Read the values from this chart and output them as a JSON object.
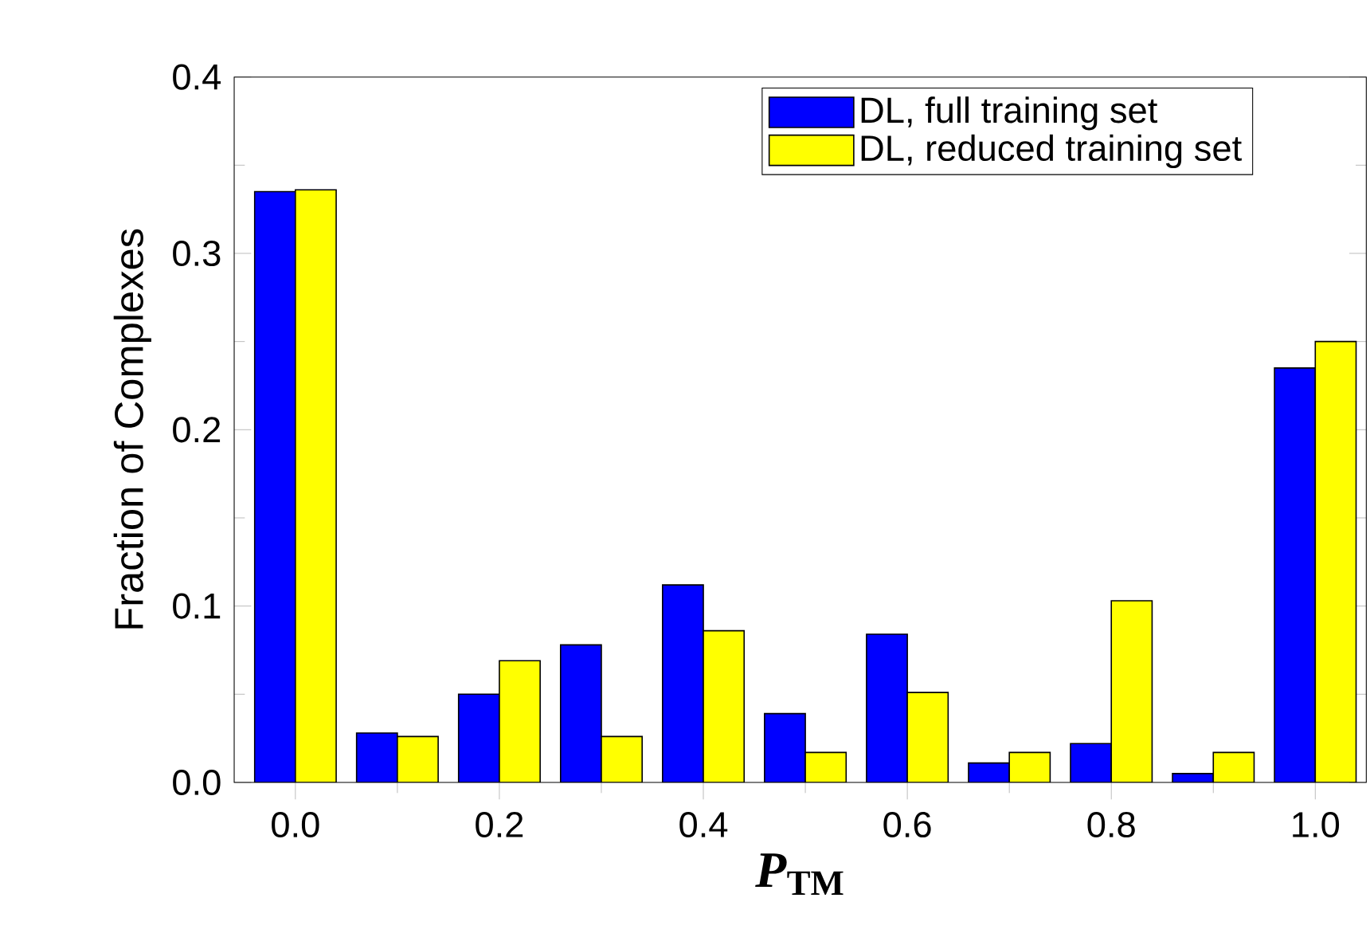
{
  "chart_data": {
    "type": "bar",
    "xlabel": "*P*$_{TM}$",
    "ylabel": "Fraction of Complexes",
    "x": [
      0.0,
      0.1,
      0.2,
      0.3,
      0.4,
      0.5,
      0.6,
      0.7,
      0.8,
      0.9,
      1.0
    ],
    "series": [
      {
        "name": "DL, full training set",
        "color": "#0000ff",
        "values": [
          0.335,
          0.028,
          0.05,
          0.078,
          0.112,
          0.039,
          0.084,
          0.011,
          0.022,
          0.005,
          0.235
        ]
      },
      {
        "name": "DL, reduced training set",
        "color": "#ffff00",
        "values": [
          0.336,
          0.026,
          0.069,
          0.026,
          0.086,
          0.017,
          0.051,
          0.017,
          0.103,
          0.017,
          0.25
        ]
      }
    ],
    "xlim": [
      -0.06,
      1.05
    ],
    "ylim": [
      0,
      0.4
    ],
    "xticks": [
      {
        "value": 0,
        "label": "0.0"
      },
      {
        "value": 0.2,
        "label": "0.2"
      },
      {
        "value": 0.4,
        "label": "0.4"
      },
      {
        "value": 0.6,
        "label": "0.6"
      },
      {
        "value": 0.8,
        "label": "0.8"
      },
      {
        "value": 1,
        "label": "1.0"
      }
    ],
    "yticks": [
      {
        "value": 0,
        "label": "0.0"
      },
      {
        "value": 0.1,
        "label": "0.1"
      },
      {
        "value": 0.2,
        "label": "0.2"
      },
      {
        "value": 0.3,
        "label": "0.3"
      },
      {
        "value": 0.4,
        "label": "0.4"
      }
    ],
    "grid": false,
    "legend": "top right"
  }
}
